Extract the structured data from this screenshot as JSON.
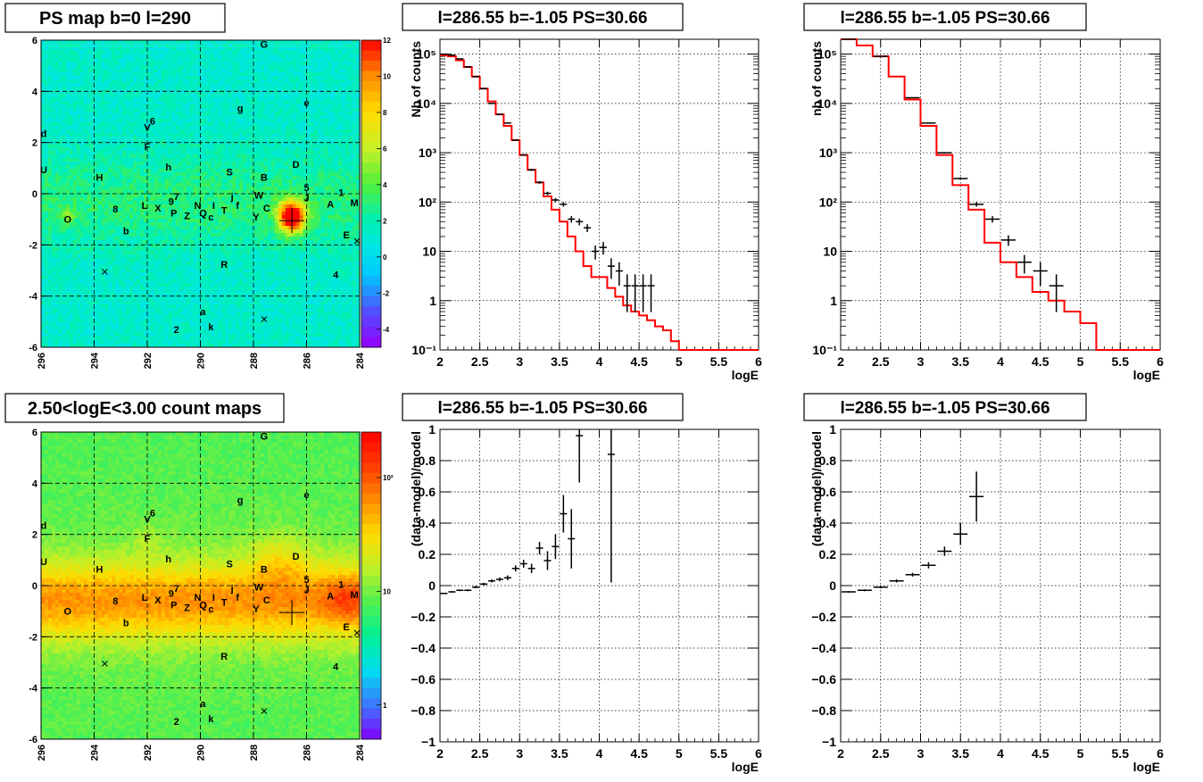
{
  "panels": {
    "map_top": {
      "title": "PS map b=0 l=290",
      "x_ticks": [
        "296",
        "294",
        "292",
        "290",
        "288",
        "286",
        "284"
      ],
      "y_ticks": [
        "6",
        "4",
        "2",
        "0",
        "-2",
        "-4",
        "-6"
      ],
      "colorbar_ticks": [
        "12",
        "10",
        "8",
        "6",
        "4",
        "2",
        "0",
        "-2",
        "-4"
      ]
    },
    "map_bottom": {
      "title": "2.50<logE<3.00 count maps",
      "x_ticks": [
        "296",
        "294",
        "292",
        "290",
        "288",
        "286",
        "284"
      ],
      "y_ticks": [
        "6",
        "4",
        "2",
        "0",
        "-2",
        "-4",
        "-6"
      ],
      "colorbar_ticks": [
        "10²",
        "10",
        "1"
      ]
    },
    "source_labels": [
      {
        "t": "G",
        "l": 287.6,
        "b": 5.85
      },
      {
        "t": "e",
        "l": 286.0,
        "b": 3.55
      },
      {
        "t": "g",
        "l": 288.5,
        "b": 3.35
      },
      {
        "t": "V",
        "l": 292.0,
        "b": 2.6
      },
      {
        "t": "6",
        "l": 291.8,
        "b": 2.85
      },
      {
        "t": "d",
        "l": 295.9,
        "b": 2.35
      },
      {
        "t": "F",
        "l": 292.0,
        "b": 1.85
      },
      {
        "t": "U",
        "l": 295.9,
        "b": 0.95
      },
      {
        "t": "h",
        "l": 291.2,
        "b": 1.05
      },
      {
        "t": "H",
        "l": 293.8,
        "b": 0.65
      },
      {
        "t": "S",
        "l": 288.9,
        "b": 0.85
      },
      {
        "t": "B",
        "l": 287.6,
        "b": 0.65
      },
      {
        "t": "D",
        "l": 286.4,
        "b": 1.15
      },
      {
        "t": "5",
        "l": 286.0,
        "b": 0.25
      },
      {
        "t": "1",
        "l": 284.7,
        "b": 0.05
      },
      {
        "t": "M",
        "l": 284.2,
        "b": -0.35
      },
      {
        "t": "A",
        "l": 285.1,
        "b": -0.4
      },
      {
        "t": "W",
        "l": 287.8,
        "b": -0.05
      },
      {
        "t": "J",
        "l": 286.0,
        "b": -0.15
      },
      {
        "t": "C",
        "l": 287.5,
        "b": -0.55
      },
      {
        "t": "Y",
        "l": 287.9,
        "b": -0.9
      },
      {
        "t": "j",
        "l": 288.8,
        "b": -0.1
      },
      {
        "t": "I",
        "l": 289.5,
        "b": -0.45
      },
      {
        "t": "T",
        "l": 289.1,
        "b": -0.65
      },
      {
        "t": "f",
        "l": 288.6,
        "b": -0.45
      },
      {
        "t": "N",
        "l": 290.1,
        "b": -0.45
      },
      {
        "t": "Q",
        "l": 289.9,
        "b": -0.75
      },
      {
        "t": "c",
        "l": 289.6,
        "b": -0.9
      },
      {
        "t": "Z",
        "l": 290.5,
        "b": -0.85
      },
      {
        "t": "P",
        "l": 291.0,
        "b": -0.75
      },
      {
        "t": "9",
        "l": 291.1,
        "b": -0.3
      },
      {
        "t": "7",
        "l": 290.9,
        "b": -0.1
      },
      {
        "t": "X",
        "l": 291.6,
        "b": -0.55
      },
      {
        "t": "L",
        "l": 292.1,
        "b": -0.45
      },
      {
        "t": "8",
        "l": 293.2,
        "b": -0.6
      },
      {
        "t": "O",
        "l": 295.0,
        "b": -1.0
      },
      {
        "t": "b",
        "l": 292.8,
        "b": -1.45
      },
      {
        "t": "E",
        "l": 284.5,
        "b": -1.6
      },
      {
        "t": "R",
        "l": 289.1,
        "b": -2.75
      },
      {
        "t": "4",
        "l": 284.9,
        "b": -3.15
      },
      {
        "t": "a",
        "l": 289.9,
        "b": -4.6
      },
      {
        "t": "k",
        "l": 289.6,
        "b": -5.2
      },
      {
        "t": "2",
        "l": 290.9,
        "b": -5.3
      }
    ],
    "cross_markers": [
      {
        "l": 293.6,
        "b": -3.05
      },
      {
        "l": 287.6,
        "b": -4.9
      },
      {
        "l": 284.1,
        "b": -1.85
      }
    ],
    "target_marker": {
      "l": 286.55,
      "b": -1.05
    },
    "spec_title": "l=286.55 b=-1.05 PS=30.66",
    "spec_left_ylabel": "Nb of counts",
    "spec_right_ylabel": "nb of counts",
    "resid_ylabel": "(data-model)/model",
    "xlabel": "logE",
    "x_ticks": [
      "2",
      "2.5",
      "3",
      "3.5",
      "4",
      "4.5",
      "5",
      "5.5",
      "6"
    ],
    "log_y_ticks": [
      "10⁻¹",
      "1",
      "10",
      "10²",
      "10³",
      "10⁴",
      "10⁵"
    ],
    "resid_y_ticks": [
      "1",
      "0.8",
      "0.6",
      "0.4",
      "0.2",
      "0",
      "−0.2",
      "−0.4",
      "−0.6",
      "−0.8",
      "−1"
    ]
  },
  "chart_data": [
    {
      "type": "line",
      "title": "l=286.55 b=-1.05 PS=30.66",
      "xlabel": "logE",
      "ylabel": "Nb of counts",
      "xlim": [
        2,
        6
      ],
      "ylim": [
        0.1,
        200000
      ],
      "yscale": "log",
      "grid": true,
      "series": [
        {
          "name": "data",
          "color": "#000000",
          "x": [
            2.05,
            2.15,
            2.25,
            2.35,
            2.45,
            2.55,
            2.65,
            2.75,
            2.85,
            2.95,
            3.05,
            3.15,
            3.25,
            3.35,
            3.45,
            3.55,
            3.65,
            3.75,
            3.85,
            3.95,
            4.05,
            4.15,
            4.25,
            4.35,
            4.45,
            4.55,
            4.65
          ],
          "y": [
            100000,
            95000,
            80000,
            55000,
            35000,
            20000,
            10000,
            6000,
            4000,
            1800,
            900,
            450,
            250,
            150,
            110,
            90,
            45,
            40,
            30,
            10,
            12,
            5,
            4,
            2,
            2,
            2,
            2
          ]
        },
        {
          "name": "model",
          "color": "#ff0000",
          "x": [
            2.0,
            2.1,
            2.2,
            2.3,
            2.4,
            2.5,
            2.6,
            2.7,
            2.8,
            2.9,
            3.0,
            3.1,
            3.2,
            3.3,
            3.4,
            3.5,
            3.6,
            3.7,
            3.8,
            3.9,
            4.0,
            4.1,
            4.2,
            4.3,
            4.4,
            4.5,
            4.6,
            4.7,
            4.8,
            4.9,
            5.0,
            5.1,
            6.0
          ],
          "y": [
            95000,
            90000,
            75000,
            55000,
            35000,
            20000,
            11000,
            6000,
            3500,
            1800,
            900,
            450,
            250,
            130,
            70,
            40,
            20,
            10,
            5,
            3,
            3,
            1.8,
            1.2,
            0.8,
            0.6,
            0.5,
            0.4,
            0.3,
            0.25,
            0.15,
            0.1,
            0.1,
            0.1
          ]
        }
      ]
    },
    {
      "type": "line",
      "title": "l=286.55 b=-1.05 PS=30.66",
      "xlabel": "logE",
      "ylabel": "nb of counts",
      "xlim": [
        2,
        6
      ],
      "ylim": [
        0.1,
        200000
      ],
      "yscale": "log",
      "grid": true,
      "series": [
        {
          "name": "data",
          "color": "#000000",
          "x": [
            2.1,
            2.5,
            2.9,
            3.1,
            3.3,
            3.5,
            3.7,
            3.9,
            4.1,
            4.3,
            4.5,
            4.7
          ],
          "y": [
            200000,
            90000,
            13000,
            4000,
            1000,
            300,
            90,
            45,
            17,
            6,
            4,
            2
          ]
        },
        {
          "name": "model",
          "color": "#ff0000",
          "x": [
            2.0,
            2.2,
            2.4,
            2.6,
            2.8,
            3.0,
            3.2,
            3.4,
            3.6,
            3.8,
            4.0,
            4.2,
            4.4,
            4.6,
            4.8,
            5.0,
            5.2,
            6.0
          ],
          "y": [
            200000,
            150000,
            90000,
            35000,
            12000,
            3500,
            900,
            220,
            70,
            15,
            6,
            3,
            1.5,
            1,
            0.6,
            0.35,
            0.1,
            0.1
          ]
        }
      ]
    },
    {
      "type": "scatter",
      "title": "l=286.55 b=-1.05 PS=30.66",
      "xlabel": "logE",
      "ylabel": "(data-model)/model",
      "xlim": [
        2,
        6
      ],
      "ylim": [
        -1,
        1
      ],
      "grid": true,
      "series": [
        {
          "name": "residual",
          "color": "#000000",
          "x": [
            2.05,
            2.15,
            2.25,
            2.35,
            2.45,
            2.55,
            2.65,
            2.75,
            2.85,
            2.95,
            3.05,
            3.15,
            3.25,
            3.35,
            3.45,
            3.55,
            3.65,
            3.75,
            4.15
          ],
          "y": [
            -0.05,
            -0.04,
            -0.03,
            -0.03,
            -0.01,
            0.01,
            0.03,
            0.04,
            0.05,
            0.11,
            0.14,
            0.11,
            0.24,
            0.16,
            0.25,
            0.46,
            0.3,
            0.96,
            0.84
          ],
          "yerr": [
            0.004,
            0.005,
            0.005,
            0.006,
            0.007,
            0.008,
            0.01,
            0.012,
            0.015,
            0.02,
            0.025,
            0.03,
            0.04,
            0.06,
            0.08,
            0.12,
            0.19,
            0.3,
            0.82
          ]
        }
      ]
    },
    {
      "type": "scatter",
      "title": "l=286.55 b=-1.05 PS=30.66",
      "xlabel": "logE",
      "ylabel": "(data-model)/model",
      "xlim": [
        2,
        6
      ],
      "ylim": [
        -1,
        1
      ],
      "grid": true,
      "series": [
        {
          "name": "residual",
          "color": "#000000",
          "x": [
            2.1,
            2.3,
            2.5,
            2.7,
            2.9,
            3.1,
            3.3,
            3.5,
            3.7
          ],
          "y": [
            -0.04,
            -0.03,
            -0.01,
            0.03,
            0.07,
            0.13,
            0.22,
            0.33,
            0.57
          ],
          "yerr": [
            0.005,
            0.006,
            0.008,
            0.01,
            0.012,
            0.02,
            0.03,
            0.07,
            0.16
          ]
        }
      ]
    }
  ]
}
